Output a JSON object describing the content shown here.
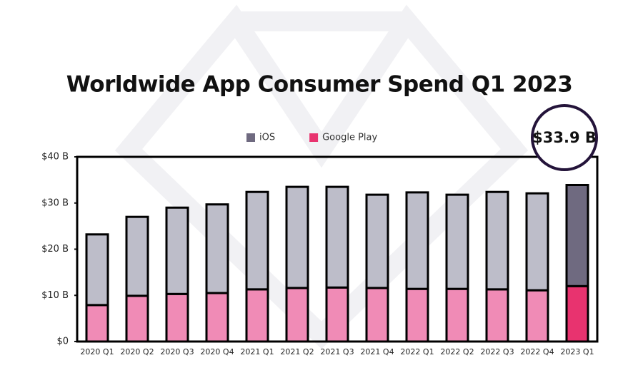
{
  "chart_data": {
    "type": "stacked_bar",
    "title": "Worldwide App Consumer Spend Q1 2023",
    "categories": [
      "2020 Q1",
      "2020 Q2",
      "2020 Q3",
      "2020 Q4",
      "2021 Q1",
      "2021 Q2",
      "2021 Q3",
      "2021 Q4",
      "2022 Q1",
      "2022 Q2",
      "2022 Q3",
      "2022 Q4",
      "2023 Q1"
    ],
    "series": [
      {
        "name": "Google Play",
        "color": "#e8336f",
        "faded_color": "#f08bb6",
        "values": [
          7.9,
          9.9,
          10.3,
          10.5,
          11.3,
          11.6,
          11.7,
          11.6,
          11.4,
          11.4,
          11.3,
          11.1,
          12.0
        ]
      },
      {
        "name": "iOS",
        "color": "#6f6a80",
        "faded_color": "#bdbdc9",
        "values": [
          15.3,
          17.1,
          18.7,
          19.2,
          21.1,
          21.9,
          21.8,
          20.2,
          20.9,
          20.4,
          21.1,
          21.0,
          21.9
        ]
      }
    ],
    "legend_order": [
      1,
      0
    ],
    "ylim": [
      0,
      40
    ],
    "yticks": [
      {
        "value": 0,
        "label": "$0"
      },
      {
        "value": 10,
        "label": "$10 B"
      },
      {
        "value": 20,
        "label": "$20 B"
      },
      {
        "value": 30,
        "label": "$30 B"
      },
      {
        "value": 40,
        "label": "$40 B"
      }
    ],
    "grid": false,
    "annotation": {
      "text": "$33.9 B",
      "category": "2023 Q1"
    }
  }
}
